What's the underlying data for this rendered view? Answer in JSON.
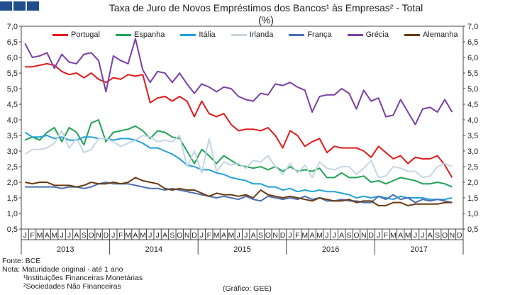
{
  "header": {
    "title_line1": "Taxa de Juro de Novos Empréstimos dos Bancos¹ às Empresas² - Total",
    "title_line2": "(%)"
  },
  "footer": {
    "source": "Fonte: BCE",
    "note": "Nota: Maturidade original - até 1 ano",
    "note1": "¹Instituições Financeiras Monetárias",
    "note2": "²Sociedades Não Financeiras",
    "credit": "(Gráfico: GEE)"
  },
  "chart_data": {
    "type": "line",
    "title": "Taxa de Juro de Novos Empréstimos dos Bancos¹ às Empresas² - Total (%)",
    "xlabel": "",
    "ylabel": "%",
    "ylim": [
      0.5,
      7.0
    ],
    "yticks": [
      "0,5",
      "1,0",
      "1,5",
      "2,0",
      "2,5",
      "3,0",
      "3,5",
      "4,0",
      "4,5",
      "5,0",
      "5,5",
      "6,0",
      "6,5",
      "7,0"
    ],
    "month_labels": [
      "J",
      "F",
      "M",
      "A",
      "M",
      "J",
      "J",
      "A",
      "S",
      "O",
      "N",
      "D"
    ],
    "years": [
      "2013",
      "2014",
      "2015",
      "2016",
      "2017"
    ],
    "legend_position": "top",
    "series": [
      {
        "name": "Portugal",
        "color": "#e01b1b",
        "values": [
          5.7,
          5.7,
          5.75,
          5.8,
          5.75,
          5.55,
          5.45,
          5.5,
          5.35,
          5.5,
          5.3,
          5.2,
          5.35,
          5.3,
          5.45,
          5.4,
          5.45,
          4.55,
          4.7,
          4.75,
          4.6,
          4.75,
          4.6,
          4.1,
          4.6,
          4.2,
          4.1,
          4.2,
          3.85,
          3.65,
          3.7,
          3.7,
          3.65,
          3.75,
          3.5,
          3.1,
          3.65,
          3.5,
          3.15,
          3.3,
          3.4,
          2.95,
          3.15,
          3.1,
          3.1,
          3.1,
          3.0,
          2.8,
          3.15,
          2.95,
          2.75,
          2.85,
          2.6,
          2.8,
          2.75,
          2.75,
          2.85,
          2.55,
          2.15
        ]
      },
      {
        "name": "Espanha",
        "color": "#21a356",
        "values": [
          3.35,
          3.45,
          3.35,
          3.6,
          3.75,
          3.3,
          3.75,
          3.6,
          3.2,
          3.9,
          4.0,
          3.3,
          3.6,
          3.65,
          3.7,
          3.8,
          3.65,
          3.4,
          3.65,
          3.6,
          3.45,
          3.4,
          3.0,
          2.6,
          3.05,
          2.85,
          2.6,
          2.85,
          2.7,
          2.55,
          2.5,
          2.45,
          2.5,
          2.4,
          2.5,
          2.35,
          2.5,
          2.35,
          2.4,
          2.35,
          2.45,
          2.15,
          2.15,
          2.3,
          2.15,
          2.15,
          2.2,
          2.0,
          2.05,
          1.95,
          2.05,
          2.15,
          2.1,
          2.05,
          1.95,
          1.95,
          2.0,
          1.95,
          1.85
        ]
      },
      {
        "name": "Itália",
        "color": "#22a0dc",
        "values": [
          3.6,
          3.45,
          3.45,
          3.5,
          3.4,
          3.45,
          3.35,
          3.35,
          3.45,
          3.45,
          3.4,
          3.4,
          3.35,
          3.4,
          3.4,
          3.35,
          3.25,
          3.1,
          3.1,
          3.0,
          2.9,
          2.75,
          2.55,
          2.5,
          2.4,
          2.4,
          2.3,
          2.25,
          2.15,
          2.1,
          2.05,
          1.95,
          1.95,
          1.85,
          1.85,
          1.75,
          1.8,
          1.7,
          1.75,
          1.7,
          1.75,
          1.7,
          1.7,
          1.65,
          1.6,
          1.5,
          1.55,
          1.5,
          1.55,
          1.5,
          1.45,
          1.55,
          1.5,
          1.5,
          1.5,
          1.45,
          1.45,
          1.45,
          1.5
        ]
      },
      {
        "name": "Irlanda",
        "color": "#c5d6e3",
        "values": [
          2.9,
          3.05,
          3.05,
          3.1,
          3.25,
          3.65,
          3.1,
          3.4,
          2.95,
          3.05,
          3.4,
          3.4,
          3.3,
          3.15,
          3.25,
          3.35,
          3.5,
          3.45,
          3.3,
          3.35,
          3.3,
          3.5,
          2.5,
          3.0,
          2.3,
          3.4,
          2.35,
          2.65,
          2.55,
          2.6,
          2.45,
          2.7,
          2.65,
          2.85,
          2.5,
          2.25,
          2.6,
          2.3,
          2.55,
          2.15,
          2.65,
          2.45,
          2.4,
          2.5,
          2.5,
          2.25,
          2.45,
          2.7,
          2.15,
          2.2,
          2.5,
          2.45,
          2.35,
          2.35,
          2.15,
          2.2,
          2.5,
          2.6,
          2.5
        ]
      },
      {
        "name": "França",
        "color": "#4a6fb0",
        "values": [
          1.85,
          1.85,
          1.85,
          1.85,
          1.85,
          1.8,
          1.85,
          1.85,
          1.8,
          1.85,
          1.95,
          2.0,
          1.95,
          1.95,
          1.95,
          1.9,
          1.85,
          1.8,
          1.8,
          1.75,
          1.8,
          1.75,
          1.7,
          1.65,
          1.6,
          1.55,
          1.5,
          1.55,
          1.5,
          1.45,
          1.55,
          1.45,
          1.4,
          1.55,
          1.5,
          1.45,
          1.5,
          1.45,
          1.55,
          1.45,
          1.5,
          1.4,
          1.4,
          1.45,
          1.4,
          1.4,
          1.35,
          1.35,
          1.55,
          1.45,
          1.6,
          1.45,
          1.5,
          1.35,
          1.45,
          1.4,
          1.45,
          1.4,
          1.35
        ]
      },
      {
        "name": "Grécia",
        "color": "#7b3fa6",
        "values": [
          6.45,
          6.0,
          6.05,
          6.15,
          5.65,
          6.1,
          5.85,
          5.8,
          6.1,
          6.15,
          5.9,
          4.9,
          6.05,
          5.9,
          5.8,
          6.6,
          5.6,
          5.2,
          5.55,
          5.5,
          5.2,
          5.5,
          5.15,
          4.85,
          5.15,
          5.05,
          4.9,
          5.05,
          5.0,
          4.75,
          4.65,
          4.6,
          4.85,
          4.8,
          5.15,
          5.1,
          5.2,
          5.05,
          4.95,
          4.25,
          4.75,
          4.8,
          4.8,
          5.0,
          4.85,
          4.35,
          4.95,
          4.6,
          4.7,
          4.1,
          4.15,
          4.65,
          4.25,
          3.85,
          4.35,
          4.4,
          4.25,
          4.65,
          4.25
        ]
      },
      {
        "name": "Alemanha",
        "color": "#6b3a10",
        "values": [
          2.0,
          1.95,
          2.0,
          2.0,
          1.9,
          1.9,
          1.9,
          1.85,
          1.9,
          2.0,
          1.95,
          1.95,
          2.0,
          1.95,
          2.0,
          2.15,
          2.05,
          2.0,
          1.95,
          1.8,
          1.75,
          1.8,
          1.75,
          1.75,
          1.65,
          1.55,
          1.65,
          1.6,
          1.6,
          1.55,
          1.6,
          1.5,
          1.75,
          1.6,
          1.55,
          1.5,
          1.55,
          1.5,
          1.45,
          1.4,
          1.5,
          1.45,
          1.4,
          1.4,
          1.45,
          1.35,
          1.4,
          1.4,
          1.25,
          1.25,
          1.35,
          1.35,
          1.25,
          1.3,
          1.3,
          1.3,
          1.3,
          1.35,
          1.35
        ]
      }
    ]
  }
}
